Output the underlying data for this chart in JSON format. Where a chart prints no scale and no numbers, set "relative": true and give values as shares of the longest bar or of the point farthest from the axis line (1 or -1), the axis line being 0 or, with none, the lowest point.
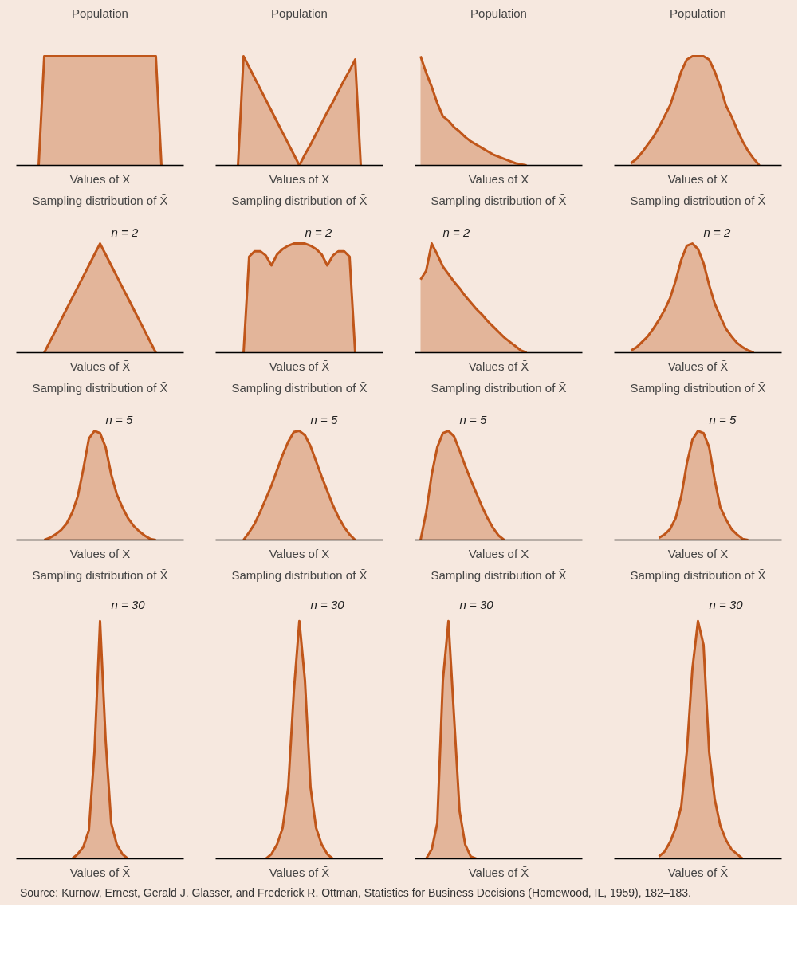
{
  "chart_data": [
    {
      "type": "area",
      "title": "Population",
      "xlabel": "Values of X",
      "relative": true,
      "categories": [
        null,
        null,
        null,
        null,
        null,
        null,
        null,
        null,
        null,
        null,
        null,
        null,
        null,
        null,
        null,
        null,
        null,
        null,
        null,
        null,
        null,
        null,
        null,
        null,
        null,
        null,
        null,
        null,
        null
      ],
      "series": [
        {
          "color": "#c0561a",
          "values": [
            null,
            null,
            null,
            0,
            1,
            1,
            1,
            1,
            1,
            1,
            1,
            1,
            1,
            1,
            1,
            1,
            1,
            1,
            1,
            1,
            1,
            1,
            1,
            1,
            1,
            0,
            null,
            null,
            null
          ]
        }
      ]
    },
    {
      "type": "area",
      "title": "Population",
      "xlabel": "Values of X",
      "relative": true,
      "categories": [
        null,
        null,
        null,
        null,
        null,
        null,
        null,
        null,
        null,
        null,
        null,
        null,
        null,
        null,
        null,
        null,
        null,
        null,
        null,
        null,
        null,
        null,
        null,
        null,
        null,
        null,
        null,
        null,
        null
      ],
      "series": [
        {
          "color": "#c0561a",
          "values": [
            null,
            null,
            null,
            0,
            1,
            0.9,
            0.8,
            0.7,
            0.6,
            0.5,
            0.4,
            0.3,
            0.2,
            0.1,
            0,
            0.1,
            0.19,
            0.29,
            0.39,
            0.49,
            0.58,
            0.68,
            0.78,
            0.87,
            0.97,
            0,
            null,
            null,
            null
          ]
        }
      ]
    },
    {
      "type": "area",
      "title": "Population",
      "xlabel": "Values of X",
      "relative": true,
      "categories": [
        null,
        null,
        null,
        null,
        null,
        null,
        null,
        null,
        null,
        null,
        null,
        null,
        null,
        null,
        null,
        null,
        null,
        null,
        null,
        null,
        null,
        null,
        null,
        null,
        null,
        null,
        null,
        null,
        null
      ],
      "series": [
        {
          "color": "#c0561a",
          "values": [
            1,
            0.85,
            0.72,
            0.57,
            0.45,
            0.41,
            0.35,
            0.31,
            0.26,
            0.22,
            0.19,
            0.16,
            0.13,
            0.1,
            0.08,
            0.06,
            0.04,
            0.02,
            0.01,
            0,
            null,
            null,
            null,
            null,
            null,
            null,
            null,
            null,
            null
          ]
        }
      ]
    },
    {
      "type": "area",
      "title": "Population",
      "xlabel": "Values of X",
      "relative": true,
      "categories": [
        null,
        null,
        null,
        null,
        null,
        null,
        null,
        null,
        null,
        null,
        null,
        null,
        null,
        null,
        null,
        null,
        null,
        null,
        null,
        null,
        null,
        null,
        null,
        null,
        null,
        null,
        null,
        null,
        null
      ],
      "series": [
        {
          "color": "#c0561a",
          "values": [
            null,
            null,
            0.02,
            0.06,
            0.12,
            0.19,
            0.26,
            0.35,
            0.45,
            0.55,
            0.7,
            0.86,
            0.97,
            1,
            1,
            1,
            0.97,
            0.86,
            0.72,
            0.55,
            0.45,
            0.33,
            0.22,
            0.13,
            0.06,
            0,
            null,
            null,
            null
          ]
        }
      ]
    },
    {
      "type": "area",
      "title": "Sampling distribution of X̄",
      "xlabel": "Values of X̄",
      "relative": true,
      "annotations": [
        "n = 2"
      ],
      "categories": [
        null,
        null,
        null,
        null,
        null,
        null,
        null,
        null,
        null,
        null,
        null,
        null,
        null,
        null,
        null,
        null,
        null,
        null,
        null,
        null,
        null,
        null,
        null,
        null,
        null,
        null,
        null,
        null,
        null
      ],
      "series": [
        {
          "color": "#c0561a",
          "values": [
            null,
            null,
            null,
            null,
            0,
            0.1,
            0.2,
            0.3,
            0.4,
            0.5,
            0.6,
            0.7,
            0.8,
            0.9,
            1,
            0.9,
            0.8,
            0.7,
            0.6,
            0.5,
            0.4,
            0.3,
            0.2,
            0.1,
            0,
            null,
            null,
            null,
            null
          ]
        }
      ]
    },
    {
      "type": "area",
      "title": "Sampling distribution of X̄",
      "xlabel": "Values of X̄",
      "relative": true,
      "annotations": [
        "n = 2"
      ],
      "categories": [
        null,
        null,
        null,
        null,
        null,
        null,
        null,
        null,
        null,
        null,
        null,
        null,
        null,
        null,
        null,
        null,
        null,
        null,
        null,
        null,
        null,
        null,
        null,
        null,
        null,
        null,
        null,
        null,
        null
      ],
      "series": [
        {
          "color": "#c0561a",
          "values": [
            null,
            null,
            null,
            null,
            0,
            0.88,
            0.93,
            0.93,
            0.89,
            0.8,
            0.9,
            0.95,
            0.98,
            1,
            1,
            1,
            0.98,
            0.95,
            0.9,
            0.8,
            0.89,
            0.93,
            0.93,
            0.88,
            0,
            null,
            null,
            null,
            null
          ]
        }
      ]
    },
    {
      "type": "area",
      "title": "Sampling distribution of X̄",
      "xlabel": "Values of X̄",
      "relative": true,
      "annotations": [
        "n = 2"
      ],
      "categories": [
        null,
        null,
        null,
        null,
        null,
        null,
        null,
        null,
        null,
        null,
        null,
        null,
        null,
        null,
        null,
        null,
        null,
        null,
        null,
        null,
        null,
        null,
        null,
        null,
        null,
        null,
        null,
        null,
        null
      ],
      "series": [
        {
          "color": "#c0561a",
          "values": [
            0.67,
            0.75,
            1,
            0.9,
            0.79,
            0.72,
            0.65,
            0.59,
            0.52,
            0.46,
            0.4,
            0.35,
            0.29,
            0.24,
            0.19,
            0.14,
            0.1,
            0.06,
            0.02,
            0,
            null,
            null,
            null,
            null,
            null,
            null,
            null,
            null,
            null
          ]
        }
      ]
    },
    {
      "type": "area",
      "title": "Sampling distribution of X̄",
      "xlabel": "Values of X̄",
      "relative": true,
      "annotations": [
        "n = 2"
      ],
      "categories": [
        null,
        null,
        null,
        null,
        null,
        null,
        null,
        null,
        null,
        null,
        null,
        null,
        null,
        null,
        null,
        null,
        null,
        null,
        null,
        null,
        null,
        null,
        null,
        null,
        null,
        null,
        null,
        null,
        null
      ],
      "series": [
        {
          "color": "#c0561a",
          "values": [
            null,
            null,
            0.02,
            0.05,
            0.1,
            0.15,
            0.22,
            0.3,
            0.39,
            0.5,
            0.66,
            0.85,
            0.98,
            1,
            0.95,
            0.82,
            0.62,
            0.45,
            0.33,
            0.22,
            0.15,
            0.09,
            0.05,
            0.02,
            0,
            null,
            null,
            null,
            null
          ]
        }
      ]
    },
    {
      "type": "area",
      "title": "Sampling distribution of X̄",
      "xlabel": "Values of X̄",
      "relative": true,
      "annotations": [
        "n = 5"
      ],
      "categories": [
        null,
        null,
        null,
        null,
        null,
        null,
        null,
        null,
        null,
        null,
        null,
        null,
        null,
        null,
        null,
        null,
        null,
        null,
        null,
        null,
        null,
        null,
        null,
        null,
        null,
        null,
        null,
        null,
        null
      ],
      "series": [
        {
          "color": "#c0561a",
          "values": [
            null,
            null,
            null,
            null,
            0,
            0.02,
            0.05,
            0.09,
            0.15,
            0.25,
            0.4,
            0.65,
            0.93,
            1,
            0.98,
            0.85,
            0.6,
            0.42,
            0.3,
            0.2,
            0.13,
            0.08,
            0.04,
            0.01,
            0,
            null,
            null,
            null,
            null
          ]
        }
      ]
    },
    {
      "type": "area",
      "title": "Sampling distribution of X̄",
      "xlabel": "Values of X̄",
      "relative": true,
      "annotations": [
        "n = 5"
      ],
      "categories": [
        null,
        null,
        null,
        null,
        null,
        null,
        null,
        null,
        null,
        null,
        null,
        null,
        null,
        null,
        null,
        null,
        null,
        null,
        null,
        null,
        null,
        null,
        null,
        null,
        null,
        null,
        null,
        null,
        null
      ],
      "series": [
        {
          "color": "#c0561a",
          "values": [
            null,
            null,
            null,
            null,
            0,
            0.07,
            0.15,
            0.26,
            0.38,
            0.5,
            0.64,
            0.78,
            0.9,
            0.99,
            1,
            0.96,
            0.86,
            0.72,
            0.58,
            0.45,
            0.32,
            0.21,
            0.12,
            0.05,
            0,
            null,
            null,
            null,
            null
          ]
        }
      ]
    },
    {
      "type": "area",
      "title": "Sampling distribution of X̄",
      "xlabel": "Values of X̄",
      "relative": true,
      "annotations": [
        "n = 5"
      ],
      "categories": [
        null,
        null,
        null,
        null,
        null,
        null,
        null,
        null,
        null,
        null,
        null,
        null,
        null,
        null,
        null,
        null,
        null,
        null,
        null,
        null,
        null,
        null,
        null,
        null,
        null,
        null,
        null,
        null,
        null
      ],
      "series": [
        {
          "color": "#c0561a",
          "values": [
            0,
            0.25,
            0.6,
            0.85,
            0.98,
            1,
            0.95,
            0.82,
            0.68,
            0.55,
            0.43,
            0.31,
            0.2,
            0.11,
            0.04,
            0,
            null,
            null,
            null,
            null,
            null,
            null,
            null,
            null,
            null,
            null,
            null,
            null,
            null
          ]
        }
      ]
    },
    {
      "type": "area",
      "title": "Sampling distribution of X̄",
      "xlabel": "Values of X̄",
      "relative": true,
      "annotations": [
        "n = 5"
      ],
      "categories": [
        null,
        null,
        null,
        null,
        null,
        null,
        null,
        null,
        null,
        null,
        null,
        null,
        null,
        null,
        null,
        null,
        null,
        null,
        null,
        null,
        null,
        null,
        null,
        null,
        null,
        null,
        null,
        null,
        null
      ],
      "series": [
        {
          "color": "#c0561a",
          "values": [
            null,
            null,
            null,
            null,
            null,
            null,
            null,
            0.02,
            0.05,
            0.1,
            0.2,
            0.4,
            0.7,
            0.92,
            1,
            0.98,
            0.85,
            0.55,
            0.3,
            0.19,
            0.1,
            0.05,
            0.01,
            0,
            null,
            null,
            null,
            null,
            null
          ]
        }
      ]
    },
    {
      "type": "area",
      "title": "Sampling distribution of X̄",
      "xlabel": "Values of X̄",
      "relative": true,
      "annotations": [
        "n = 30"
      ],
      "categories": [
        null,
        null,
        null,
        null,
        null,
        null,
        null,
        null,
        null,
        null,
        null,
        null,
        null,
        null,
        null,
        null,
        null,
        null,
        null,
        null,
        null,
        null,
        null,
        null,
        null,
        null,
        null,
        null,
        null
      ],
      "series": [
        {
          "color": "#c0561a",
          "values": [
            null,
            null,
            null,
            null,
            null,
            null,
            null,
            null,
            null,
            0,
            0.02,
            0.05,
            0.12,
            0.45,
            1,
            0.5,
            0.15,
            0.06,
            0.02,
            0,
            null,
            null,
            null,
            null,
            null,
            null,
            null,
            null,
            null
          ]
        }
      ]
    },
    {
      "type": "area",
      "title": "Sampling distribution of X̄",
      "xlabel": "Values of X̄",
      "relative": true,
      "annotations": [
        "n = 30"
      ],
      "categories": [
        null,
        null,
        null,
        null,
        null,
        null,
        null,
        null,
        null,
        null,
        null,
        null,
        null,
        null,
        null,
        null,
        null,
        null,
        null,
        null,
        null,
        null,
        null,
        null,
        null,
        null,
        null,
        null,
        null
      ],
      "series": [
        {
          "color": "#c0561a",
          "values": [
            null,
            null,
            null,
            null,
            null,
            null,
            null,
            null,
            0,
            0.02,
            0.06,
            0.13,
            0.3,
            0.7,
            1,
            0.75,
            0.3,
            0.13,
            0.06,
            0.02,
            0,
            null,
            null,
            null,
            null,
            null,
            null,
            null,
            null
          ]
        }
      ]
    },
    {
      "type": "area",
      "title": "Sampling distribution of X̄",
      "xlabel": "Values of X̄",
      "relative": true,
      "annotations": [
        "n = 30",
        "Source: Kurnow, Ernest, Gerald J. Glasser, and Frederick R. Ottman, Statistics for Business Decisions (Homewood, IL, 1959), 182–183."
      ],
      "categories": [
        null,
        null,
        null,
        null,
        null,
        null,
        null,
        null,
        null,
        null,
        null,
        null,
        null,
        null,
        null,
        null,
        null,
        null,
        null,
        null,
        null,
        null,
        null,
        null,
        null,
        null,
        null,
        null,
        null
      ],
      "series": [
        {
          "color": "#c0561a",
          "values": [
            null,
            0,
            0.04,
            0.15,
            0.75,
            1,
            0.6,
            0.2,
            0.06,
            0.01,
            0,
            null,
            null,
            null,
            null,
            null,
            null,
            null,
            null,
            null,
            null,
            null,
            null,
            null,
            null,
            null,
            null,
            null,
            null
          ]
        }
      ]
    },
    {
      "type": "area",
      "title": "Sampling distribution of X̄",
      "xlabel": "Values of X̄",
      "relative": true,
      "annotations": [
        "n = 30"
      ],
      "categories": [
        null,
        null,
        null,
        null,
        null,
        null,
        null,
        null,
        null,
        null,
        null,
        null,
        null,
        null,
        null,
        null,
        null,
        null,
        null,
        null,
        null,
        null,
        null,
        null,
        null,
        null,
        null,
        null,
        null
      ],
      "series": [
        {
          "color": "#c0561a",
          "values": [
            null,
            null,
            null,
            null,
            null,
            null,
            null,
            0.01,
            0.03,
            0.07,
            0.13,
            0.22,
            0.45,
            0.8,
            1,
            0.9,
            0.45,
            0.25,
            0.14,
            0.08,
            0.04,
            0.02,
            0,
            null,
            null,
            null,
            null,
            null,
            null
          ]
        }
      ]
    }
  ]
}
